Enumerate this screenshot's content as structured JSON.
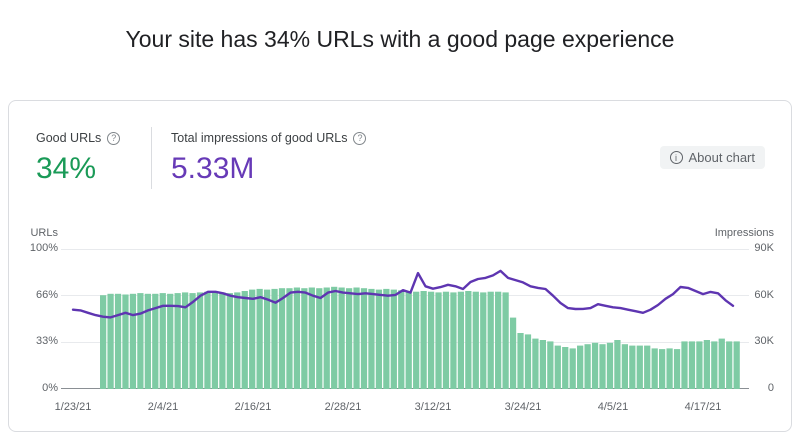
{
  "page": {
    "title": "Your site has 34% URLs with a good page experience"
  },
  "card": {
    "metrics": [
      {
        "label": "Good URLs",
        "value": "34%",
        "value_color": "#1a9a57",
        "help_icon": "help-circle-icon"
      },
      {
        "label": "Total impressions of good URLs",
        "value": "5.33M",
        "value_color": "#673ab7",
        "help_icon": "help-circle-icon"
      }
    ],
    "about_button": {
      "label": "About chart",
      "icon": "info-circle-icon"
    }
  },
  "icons": {
    "help_glyph": "?",
    "info_glyph": "i"
  },
  "chart_data": {
    "type": "bar+line",
    "x_start_date": "1/23/21",
    "x_end_date": "4/22/21",
    "x_tick_labels": [
      "1/23/21",
      "2/4/21",
      "2/16/21",
      "2/28/21",
      "3/12/21",
      "3/24/21",
      "4/5/21",
      "4/17/21"
    ],
    "left_axis": {
      "title": "URLs",
      "ticks": [
        "100%",
        "66%",
        "33%",
        "0%"
      ],
      "range": [
        0,
        100
      ],
      "unit": "percent"
    },
    "right_axis": {
      "title": "Impressions",
      "ticks": [
        "90K",
        "60K",
        "30K",
        "0"
      ],
      "range": [
        0,
        90000
      ],
      "unit": "impressions"
    },
    "grid": true,
    "series": [
      {
        "name": "Good URLs",
        "type": "bar",
        "axis": "left",
        "color": "#7ecba4",
        "unit": "percent",
        "start_day_index": 4,
        "values": [
          67,
          68,
          68,
          67.5,
          68,
          68.5,
          68,
          68,
          68.5,
          68,
          68.5,
          69,
          68.5,
          69,
          69.5,
          69,
          69,
          68.5,
          69,
          70,
          71,
          71.5,
          71,
          71.5,
          72,
          72,
          72.5,
          72,
          72.5,
          72,
          72.5,
          73,
          72.5,
          72,
          72.5,
          72,
          71.5,
          71,
          71.5,
          71,
          70.5,
          70,
          69.5,
          70,
          69.5,
          69,
          69.5,
          69,
          69.5,
          70,
          69.5,
          69,
          69.5,
          69.5,
          69,
          51,
          40,
          39,
          36,
          35,
          34,
          31,
          30,
          29,
          31,
          32,
          33,
          32,
          33,
          35,
          32,
          31,
          31,
          31,
          29,
          28.5,
          29,
          28.5,
          34,
          34,
          34,
          35,
          34,
          36,
          34,
          34
        ]
      },
      {
        "name": "Impressions",
        "type": "line",
        "axis": "right",
        "color": "#5e35b1",
        "unit": "thousands",
        "start_day_index": 0,
        "values": [
          51,
          50.5,
          49,
          47.5,
          46.5,
          46,
          47.5,
          49,
          47.5,
          48.5,
          50.5,
          52,
          53.5,
          53.5,
          53.3,
          52.5,
          56,
          60,
          62.5,
          62.5,
          61.5,
          60,
          59,
          58.5,
          58,
          59,
          57.5,
          55.5,
          58.5,
          62,
          62.5,
          62,
          60,
          58.5,
          62,
          63,
          62,
          61.5,
          61,
          61.5,
          61,
          60.5,
          60,
          60.5,
          63.5,
          62,
          74.5,
          66,
          64.5,
          65.5,
          67,
          66,
          64.3,
          68.8,
          70.7,
          71.4,
          73,
          75.9,
          71.4,
          70,
          68.5,
          66,
          65,
          64.3,
          60,
          55.3,
          52,
          51.4,
          51.5,
          52,
          54.5,
          53.5,
          52.5,
          52,
          51,
          50,
          49,
          51,
          54,
          58,
          61,
          65.6,
          65,
          63,
          61,
          62.4,
          61.5,
          57,
          53.5
        ]
      }
    ]
  }
}
